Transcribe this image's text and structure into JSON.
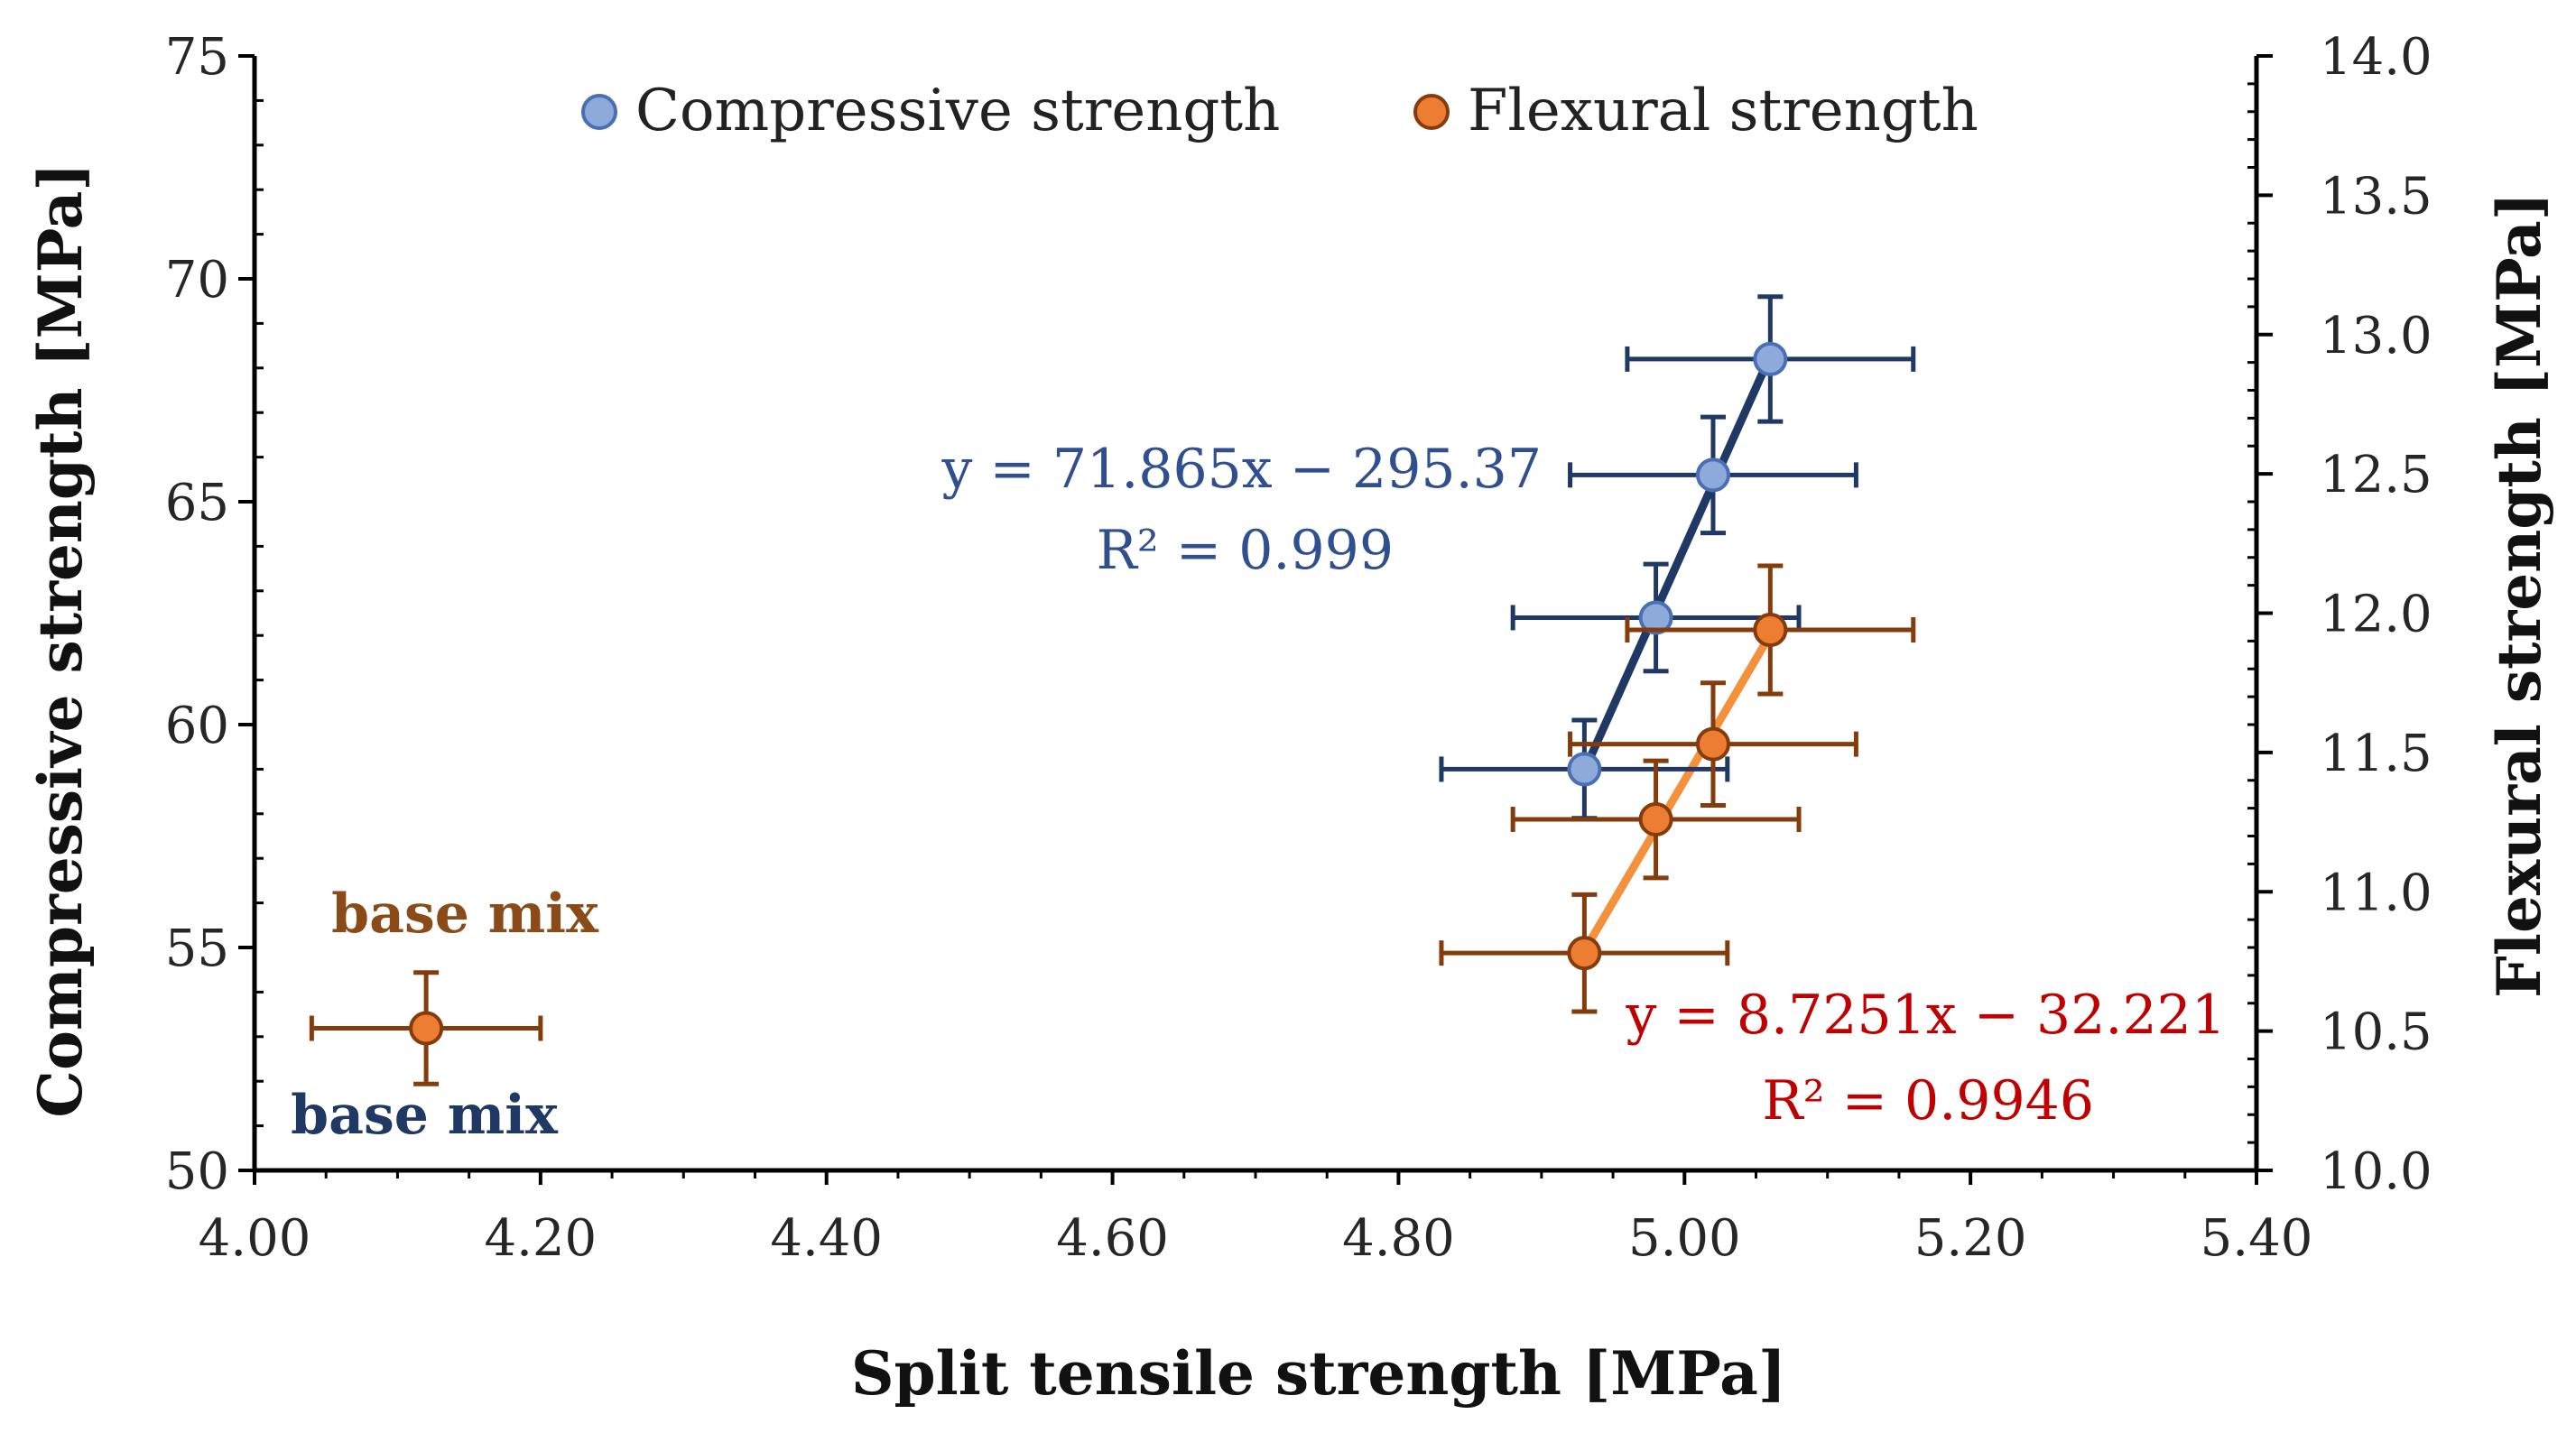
{
  "chart_data": {
    "type": "scatter",
    "title": "",
    "xlabel": "Split tensile strength [MPa]",
    "ylabel": "Compressive strength [MPa]",
    "y2label": "Flexural strength [MPa]",
    "xlim": [
      4.0,
      5.4
    ],
    "ylim": [
      50,
      75
    ],
    "y2lim": [
      10.0,
      14.0
    ],
    "xticks": [
      "4.00",
      "4.20",
      "4.40",
      "4.60",
      "4.80",
      "5.00",
      "5.20",
      "5.40"
    ],
    "yticks": [
      "50",
      "55",
      "60",
      "65",
      "70",
      "75"
    ],
    "y2ticks": [
      "10.0",
      "10.5",
      "11.0",
      "11.5",
      "12.0",
      "12.5",
      "13.0",
      "13.5",
      "14.0"
    ],
    "grid": false,
    "legend_position": "top",
    "series": [
      {
        "name": "Compressive strength",
        "axis": "left",
        "color": "#8eaadb",
        "edge_color": "#4a6fb5",
        "points": [
          {
            "x": 4.93,
            "y": 59.0,
            "xerr": 0.1,
            "yerr": 1.1
          },
          {
            "x": 4.98,
            "y": 62.4,
            "xerr": 0.1,
            "yerr": 1.2
          },
          {
            "x": 5.02,
            "y": 65.6,
            "xerr": 0.1,
            "yerr": 1.3
          },
          {
            "x": 5.06,
            "y": 68.2,
            "xerr": 0.1,
            "yerr": 1.4
          }
        ],
        "trendline": {
          "x_range": [
            4.93,
            5.06
          ],
          "color": "#1f3864"
        },
        "equation": "y = 71.865x − 295.37",
        "r2": "R² = 0.999",
        "label_color": "#2f4f8f"
      },
      {
        "name": "Flexural strength",
        "axis": "right",
        "color": "#ed7d31",
        "edge_color": "#843c0c",
        "points": [
          {
            "x": 4.93,
            "y": 10.78,
            "xerr": 0.1,
            "yerr": 0.21
          },
          {
            "x": 4.98,
            "y": 11.26,
            "xerr": 0.1,
            "yerr": 0.21
          },
          {
            "x": 5.02,
            "y": 11.53,
            "xerr": 0.1,
            "yerr": 0.22
          },
          {
            "x": 5.06,
            "y": 11.94,
            "xerr": 0.1,
            "yerr": 0.23
          }
        ],
        "trendline": {
          "x_range": [
            4.93,
            5.06
          ],
          "color": "#f4913d"
        },
        "equation": "y = 8.7251x − 32.221",
        "r2": "R² = 0.9946",
        "label_color": "#c00000"
      },
      {
        "name": "base mix",
        "axis": "right",
        "color": "#ed7d31",
        "edge_color": "#843c0c",
        "points": [
          {
            "x": 4.12,
            "y": 10.51,
            "xerr": 0.08,
            "yerr": 0.2
          }
        ]
      }
    ],
    "annotations": [
      {
        "text": "base mix",
        "color": "#8a4b18"
      },
      {
        "text": "base mix",
        "color": "#1f3864"
      }
    ]
  }
}
